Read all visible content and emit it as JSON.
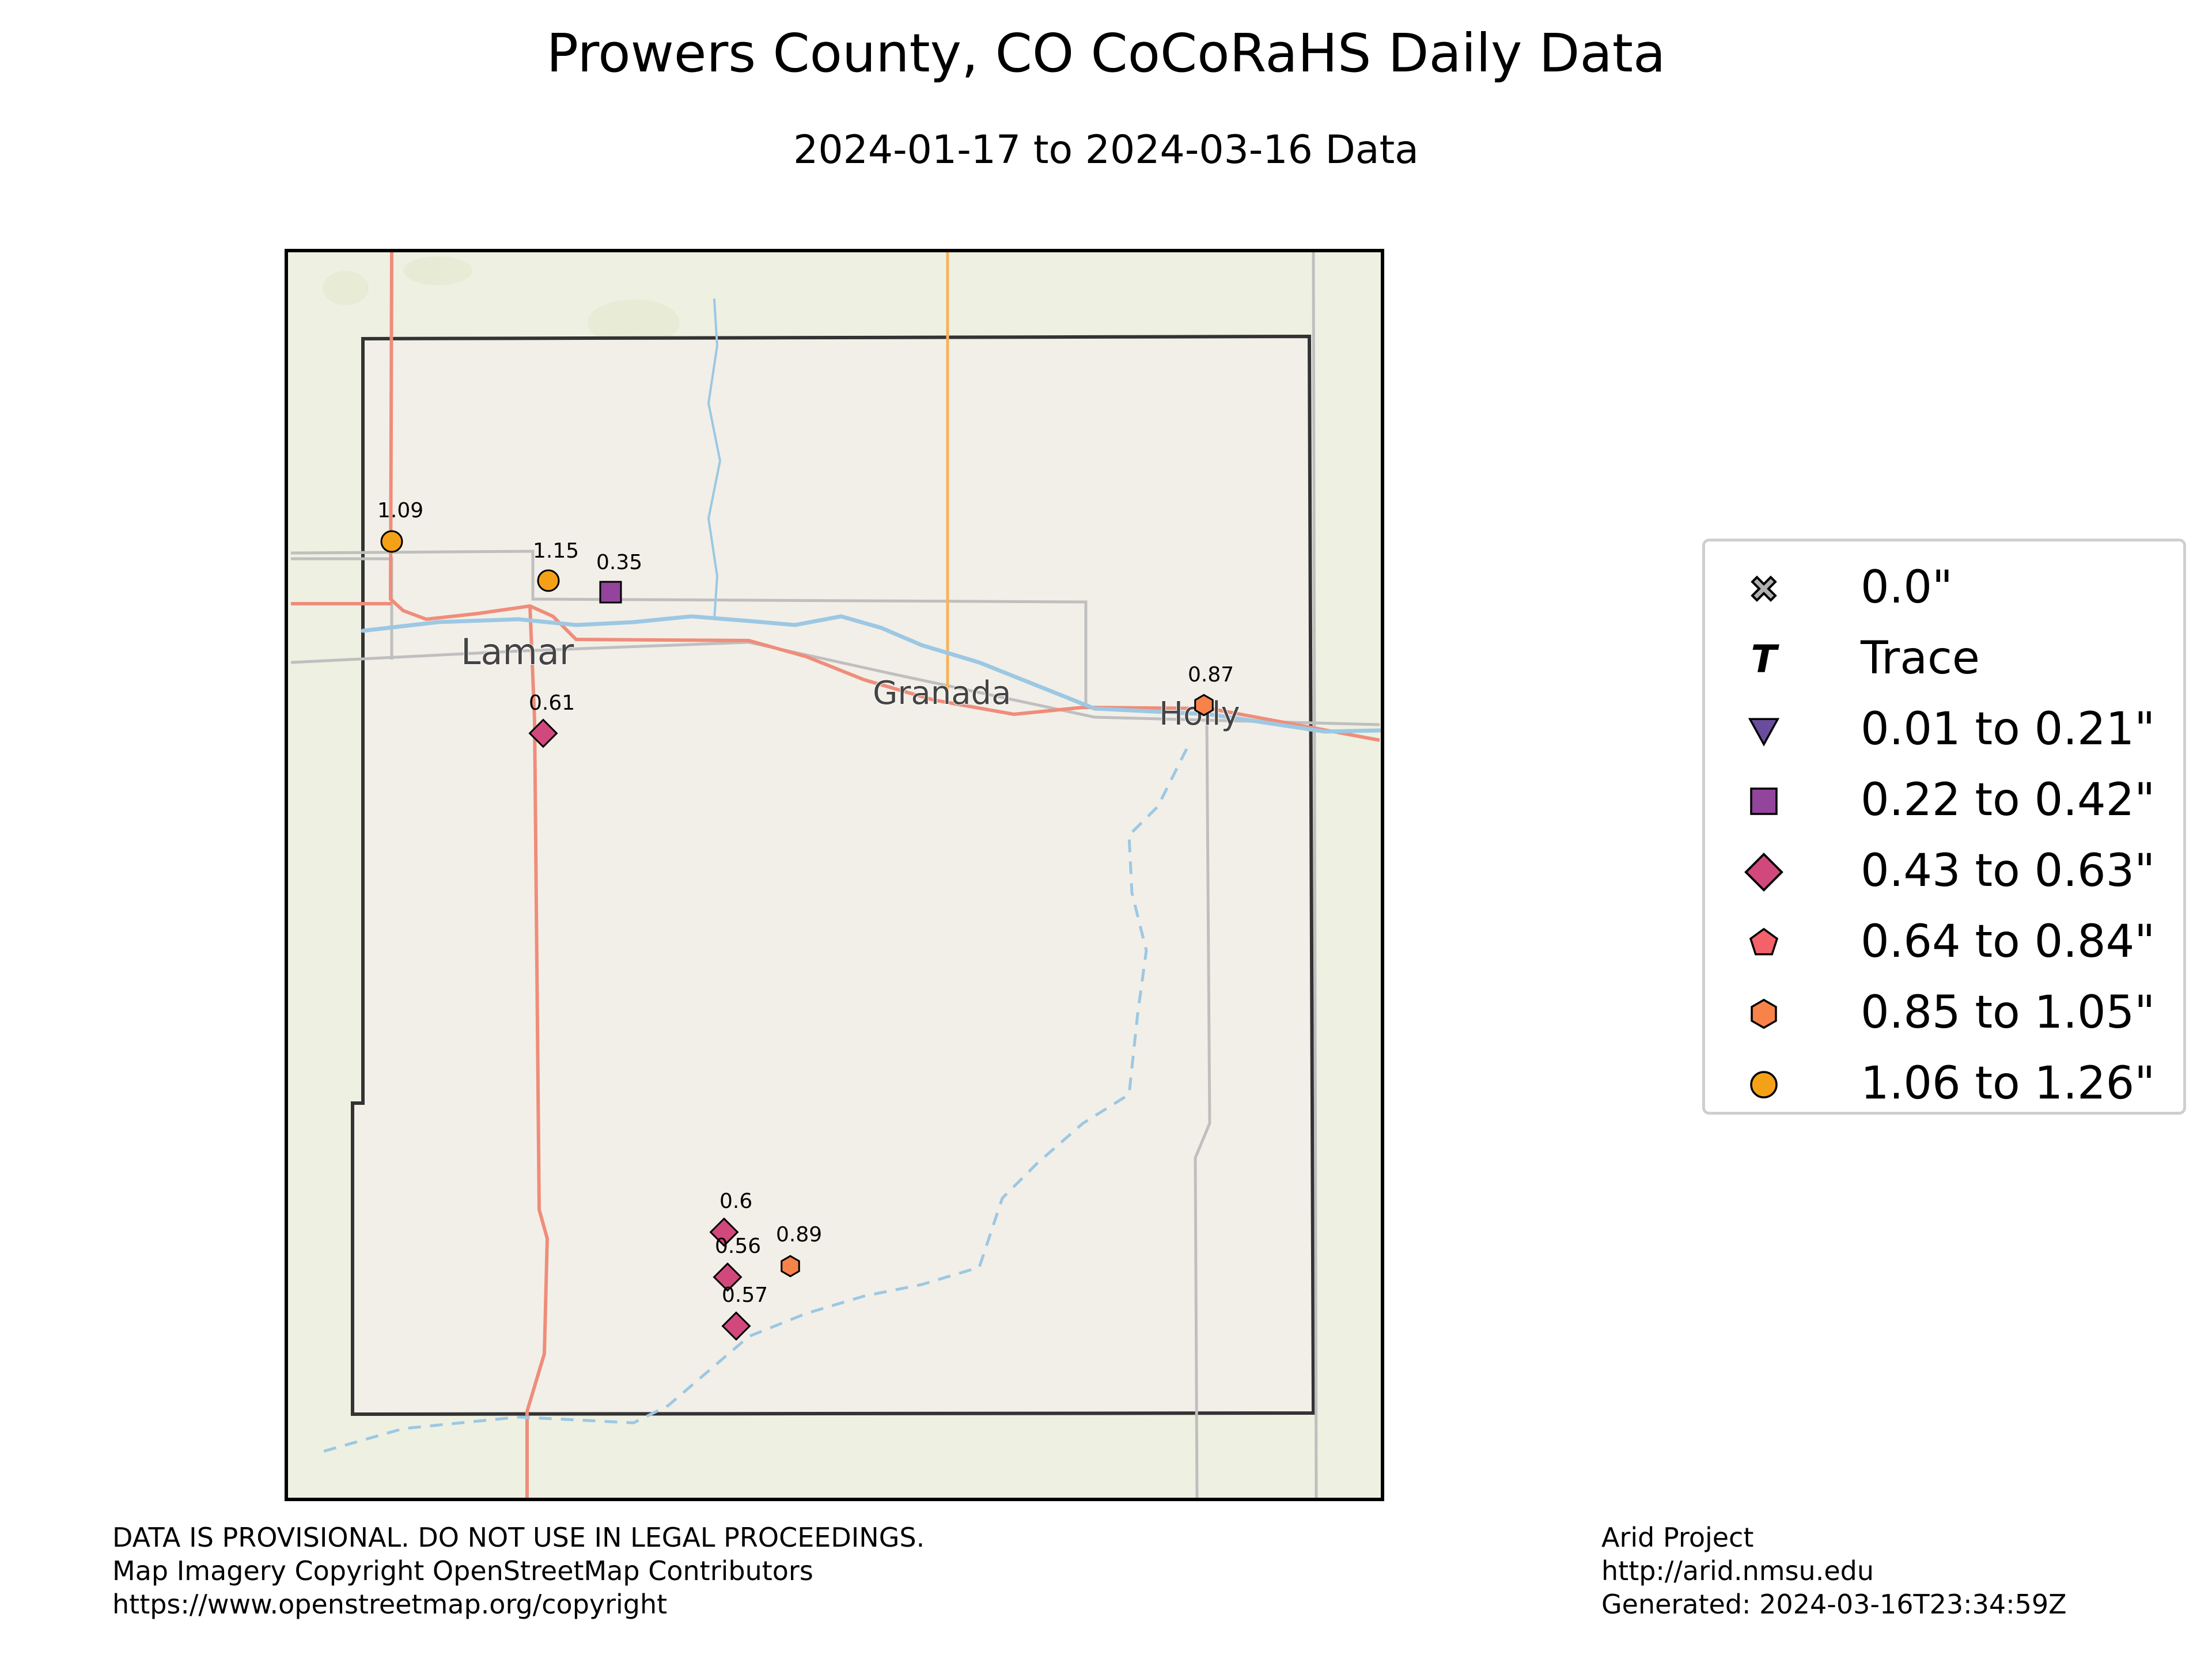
{
  "title": "Prowers County, CO CoCoRaHS Daily Data",
  "subtitle": "2024-01-17 to 2024-03-16 Data",
  "map": {
    "towns": [
      {
        "name": "Lamar"
      },
      {
        "name": "Granada"
      },
      {
        "name": "Holly"
      }
    ],
    "stations": [
      {
        "value": "1.09",
        "category": "1.06 to 1.26\"",
        "marker": "circle",
        "color": "#f5a118"
      },
      {
        "value": "1.15",
        "category": "1.06 to 1.26\"",
        "marker": "circle",
        "color": "#f5a118"
      },
      {
        "value": "0.35",
        "category": "0.22 to 0.42\"",
        "marker": "square",
        "color": "#93449c"
      },
      {
        "value": "0.61",
        "category": "0.43 to 0.63\"",
        "marker": "diamond",
        "color": "#d1487c"
      },
      {
        "value": "0.87",
        "category": "0.85 to 1.05\"",
        "marker": "hexagon",
        "color": "#f7834a"
      },
      {
        "value": "0.6",
        "category": "0.43 to 0.63\"",
        "marker": "diamond",
        "color": "#d1487c"
      },
      {
        "value": "0.56",
        "category": "0.43 to 0.63\"",
        "marker": "diamond",
        "color": "#d1487c"
      },
      {
        "value": "0.89",
        "category": "0.85 to 1.05\"",
        "marker": "hexagon",
        "color": "#f7834a"
      },
      {
        "value": "0.57",
        "category": "0.43 to 0.63\"",
        "marker": "diamond",
        "color": "#d1487c"
      }
    ]
  },
  "legend": {
    "placement": "right",
    "items": [
      {
        "label": "0.0\"",
        "marker": "x",
        "color": "#b0b0b0"
      },
      {
        "label": "Trace",
        "marker": "T",
        "color": "#000000"
      },
      {
        "label": "0.01 to 0.21\"",
        "marker": "triangle-down",
        "color": "#6a4c9c"
      },
      {
        "label": "0.22 to 0.42\"",
        "marker": "square",
        "color": "#93449c"
      },
      {
        "label": "0.43 to 0.63\"",
        "marker": "diamond",
        "color": "#d1487c"
      },
      {
        "label": "0.64 to 0.84\"",
        "marker": "pentagon",
        "color": "#f4616a"
      },
      {
        "label": "0.85 to 1.05\"",
        "marker": "hexagon",
        "color": "#f7834a"
      },
      {
        "label": "1.06 to 1.26\"",
        "marker": "circle",
        "color": "#f5a118"
      }
    ]
  },
  "footer": {
    "left": [
      "DATA IS PROVISIONAL. DO NOT USE IN LEGAL PROCEEDINGS.",
      "Map Imagery Copyright OpenStreetMap Contributors",
      "https://www.openstreetmap.org/copyright"
    ],
    "right": [
      "Arid Project",
      "http://arid.nmsu.edu",
      "Generated: 2024-03-16T23:34:59Z"
    ]
  },
  "colors": {
    "background_map": "#eef0e2",
    "county_fill": "#f2efe8",
    "river": "#9cc8e3",
    "highway": "#ef8d7a",
    "road_orange": "#f6b35c",
    "road_gray": "#bfbfbf"
  }
}
